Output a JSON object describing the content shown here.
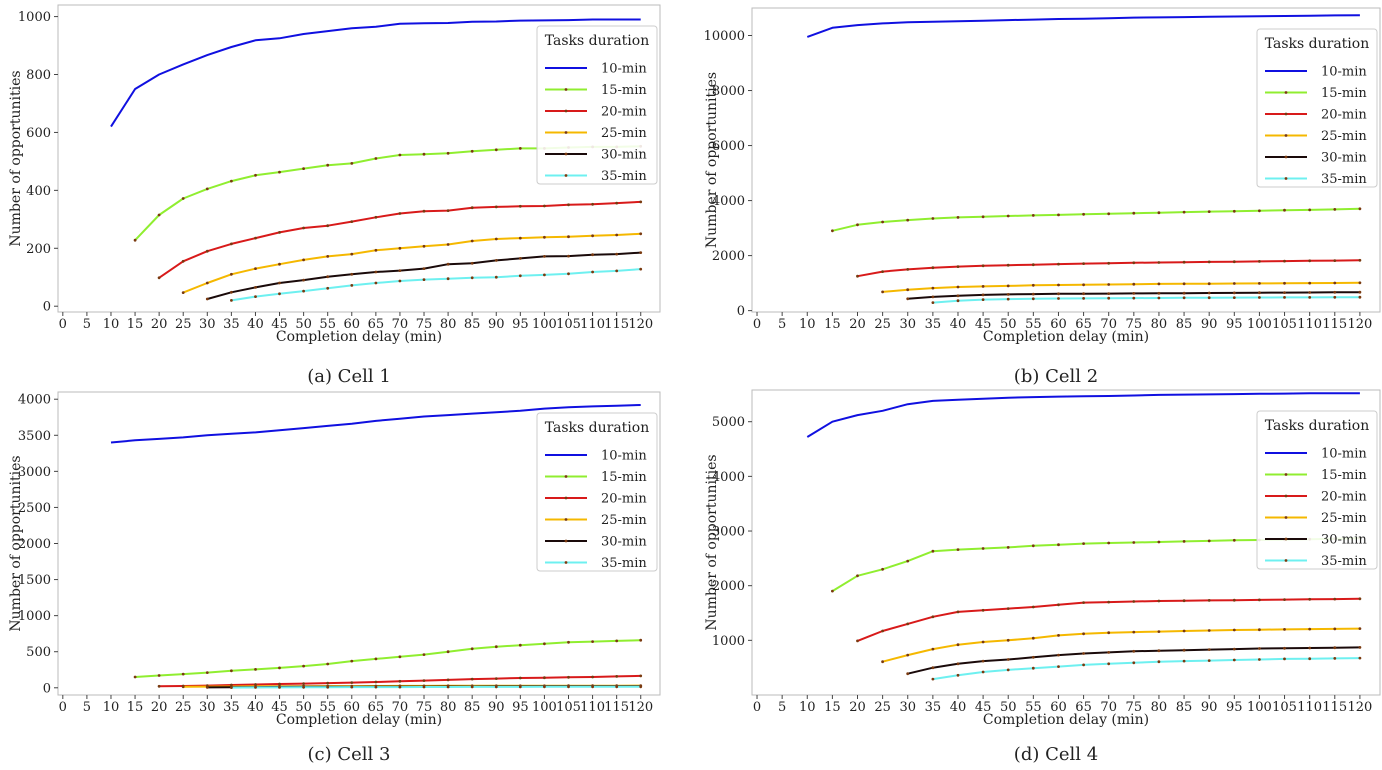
{
  "figure": {
    "legend_title": "Tasks duration",
    "series_colors": {
      "10-min": "#1010e0",
      "15-min": "#90ee30",
      "20-min": "#d81a1a",
      "25-min": "#f5b800",
      "30-min": "#1a0a0a",
      "35-min": "#6ef0f0"
    }
  },
  "chart_data": [
    {
      "type": "line",
      "caption": "(a) Cell 1",
      "xlabel": "Completion delay (min)",
      "ylabel": "Number of opportunities",
      "x_ticks": [
        0,
        5,
        10,
        15,
        20,
        25,
        30,
        35,
        40,
        45,
        50,
        55,
        60,
        65,
        70,
        75,
        80,
        85,
        90,
        95,
        100,
        105,
        110,
        115,
        120
      ],
      "y_ticks": [
        0,
        200,
        400,
        600,
        800,
        1000
      ],
      "ylim": [
        -20,
        1040
      ],
      "legend": true,
      "legend_position": "right",
      "series": [
        {
          "name": "10-min",
          "x_start": 10,
          "values": [
            620,
            750,
            800,
            835,
            867,
            895,
            918,
            925,
            940,
            950,
            960,
            965,
            975,
            977,
            978,
            982,
            983,
            986,
            987,
            988,
            990,
            990,
            990
          ]
        },
        {
          "name": "15-min",
          "x_start": 15,
          "values": [
            228,
            315,
            372,
            405,
            432,
            452,
            463,
            475,
            487,
            493,
            510,
            522,
            525,
            528,
            535,
            540,
            545,
            545,
            548,
            550,
            550,
            552
          ]
        },
        {
          "name": "20-min",
          "x_start": 20,
          "values": [
            98,
            155,
            190,
            215,
            235,
            255,
            270,
            278,
            292,
            307,
            320,
            328,
            330,
            340,
            343,
            345,
            346,
            350,
            352,
            356,
            360
          ]
        },
        {
          "name": "25-min",
          "x_start": 25,
          "values": [
            47,
            80,
            110,
            130,
            145,
            160,
            172,
            180,
            193,
            200,
            207,
            213,
            225,
            232,
            235,
            238,
            240,
            243,
            246,
            250
          ]
        },
        {
          "name": "30-min",
          "x_start": 30,
          "values": [
            25,
            48,
            65,
            80,
            90,
            102,
            110,
            118,
            123,
            130,
            145,
            148,
            158,
            165,
            172,
            173,
            178,
            180,
            185
          ]
        },
        {
          "name": "35-min",
          "x_start": 35,
          "values": [
            20,
            33,
            43,
            52,
            62,
            72,
            80,
            87,
            92,
            95,
            98,
            100,
            105,
            108,
            112,
            118,
            122,
            128
          ]
        }
      ]
    },
    {
      "type": "line",
      "caption": "(b) Cell 2",
      "xlabel": "Completion delay (min)",
      "ylabel": "Number of opportunities",
      "x_ticks": [
        0,
        5,
        10,
        15,
        20,
        25,
        30,
        35,
        40,
        45,
        50,
        55,
        60,
        65,
        70,
        75,
        80,
        85,
        90,
        95,
        100,
        105,
        110,
        115,
        120
      ],
      "y_ticks": [
        0,
        2000,
        4000,
        6000,
        8000,
        10000
      ],
      "ylim": [
        -50,
        11000
      ],
      "legend": true,
      "legend_position": "right",
      "series": [
        {
          "name": "10-min",
          "x_start": 10,
          "values": [
            9950,
            10280,
            10380,
            10440,
            10480,
            10500,
            10520,
            10540,
            10560,
            10580,
            10600,
            10610,
            10630,
            10650,
            10660,
            10670,
            10680,
            10690,
            10700,
            10710,
            10720,
            10730,
            10740
          ]
        },
        {
          "name": "15-min",
          "x_start": 15,
          "values": [
            2900,
            3120,
            3220,
            3290,
            3350,
            3390,
            3410,
            3440,
            3460,
            3480,
            3500,
            3520,
            3540,
            3560,
            3580,
            3600,
            3610,
            3630,
            3650,
            3660,
            3680,
            3700
          ]
        },
        {
          "name": "20-min",
          "x_start": 20,
          "values": [
            1250,
            1420,
            1500,
            1560,
            1600,
            1630,
            1650,
            1670,
            1690,
            1710,
            1720,
            1740,
            1750,
            1760,
            1770,
            1780,
            1790,
            1800,
            1810,
            1820,
            1830
          ]
        },
        {
          "name": "25-min",
          "x_start": 25,
          "values": [
            680,
            760,
            820,
            860,
            880,
            900,
            920,
            930,
            940,
            950,
            960,
            970,
            975,
            980,
            985,
            990,
            995,
            1000,
            1005,
            1010
          ]
        },
        {
          "name": "30-min",
          "x_start": 30,
          "values": [
            430,
            500,
            540,
            570,
            590,
            600,
            610,
            615,
            620,
            625,
            630,
            635,
            640,
            645,
            650,
            655,
            660,
            665,
            670
          ]
        },
        {
          "name": "35-min",
          "x_start": 35,
          "values": [
            290,
            360,
            400,
            420,
            430,
            440,
            445,
            450,
            455,
            460,
            465,
            470,
            475,
            478,
            480,
            482,
            485,
            488
          ]
        }
      ]
    },
    {
      "type": "line",
      "caption": "(c) Cell 3",
      "xlabel": "Completion delay (min)",
      "ylabel": "Number of opportunities",
      "x_ticks": [
        0,
        5,
        10,
        15,
        20,
        25,
        30,
        35,
        40,
        45,
        50,
        55,
        60,
        65,
        70,
        75,
        80,
        85,
        90,
        95,
        100,
        105,
        110,
        115,
        120
      ],
      "y_ticks": [
        0,
        500,
        1000,
        1500,
        2000,
        2500,
        3000,
        3500,
        4000
      ],
      "ylim": [
        -100,
        4100
      ],
      "legend": true,
      "legend_position": "right",
      "series": [
        {
          "name": "10-min",
          "x_start": 10,
          "values": [
            3400,
            3430,
            3450,
            3470,
            3500,
            3520,
            3540,
            3570,
            3600,
            3630,
            3660,
            3700,
            3730,
            3760,
            3780,
            3800,
            3820,
            3840,
            3870,
            3890,
            3900,
            3910,
            3920
          ]
        },
        {
          "name": "15-min",
          "x_start": 15,
          "values": [
            150,
            170,
            190,
            210,
            235,
            255,
            275,
            300,
            330,
            370,
            400,
            430,
            460,
            500,
            540,
            570,
            590,
            610,
            630,
            640,
            650,
            660
          ]
        },
        {
          "name": "20-min",
          "x_start": 20,
          "values": [
            20,
            25,
            30,
            38,
            45,
            52,
            58,
            65,
            72,
            80,
            90,
            100,
            110,
            120,
            128,
            135,
            140,
            145,
            150,
            158,
            165
          ]
        },
        {
          "name": "25-min",
          "x_start": 25,
          "values": [
            15,
            17,
            18,
            20,
            21,
            22,
            23,
            24,
            25,
            26,
            26,
            27,
            27,
            28,
            28,
            28,
            29,
            29,
            29,
            30
          ]
        },
        {
          "name": "30-min",
          "x_start": 30,
          "values": [
            5,
            8,
            10,
            12,
            13,
            14,
            15,
            16,
            17,
            17,
            18,
            18,
            19,
            19,
            20,
            20,
            20,
            21,
            21
          ]
        },
        {
          "name": "35-min",
          "x_start": 35,
          "values": [
            3,
            5,
            6,
            7,
            8,
            9,
            10,
            10,
            11,
            11,
            12,
            12,
            12,
            13,
            13,
            13,
            14,
            14
          ]
        }
      ]
    },
    {
      "type": "line",
      "caption": "(d) Cell 4",
      "xlabel": "Completion delay (min)",
      "ylabel": "Number of opportunities",
      "x_ticks": [
        0,
        5,
        10,
        15,
        20,
        25,
        30,
        35,
        40,
        45,
        50,
        55,
        60,
        65,
        70,
        75,
        80,
        85,
        90,
        95,
        100,
        105,
        110,
        115,
        120
      ],
      "y_ticks": [
        1000,
        2000,
        3000,
        4000,
        5000
      ],
      "ylim": [
        0,
        5580
      ],
      "legend": true,
      "legend_position": "right",
      "series": [
        {
          "name": "10-min",
          "x_start": 10,
          "values": [
            4720,
            5000,
            5120,
            5200,
            5320,
            5380,
            5400,
            5420,
            5440,
            5450,
            5460,
            5465,
            5470,
            5480,
            5490,
            5495,
            5500,
            5505,
            5510,
            5515,
            5520,
            5520,
            5520
          ]
        },
        {
          "name": "15-min",
          "x_start": 15,
          "values": [
            1900,
            2180,
            2300,
            2450,
            2630,
            2660,
            2680,
            2700,
            2730,
            2750,
            2770,
            2780,
            2790,
            2800,
            2810,
            2820,
            2830,
            2835,
            2840,
            2850,
            2860,
            2870
          ]
        },
        {
          "name": "20-min",
          "x_start": 20,
          "values": [
            990,
            1170,
            1300,
            1430,
            1520,
            1550,
            1580,
            1610,
            1650,
            1690,
            1700,
            1710,
            1720,
            1725,
            1730,
            1735,
            1740,
            1745,
            1750,
            1755,
            1760
          ]
        },
        {
          "name": "25-min",
          "x_start": 25,
          "values": [
            610,
            730,
            840,
            920,
            970,
            1000,
            1040,
            1090,
            1120,
            1140,
            1150,
            1160,
            1170,
            1180,
            1190,
            1195,
            1200,
            1205,
            1210,
            1215
          ]
        },
        {
          "name": "30-min",
          "x_start": 30,
          "values": [
            390,
            500,
            570,
            620,
            650,
            690,
            730,
            760,
            780,
            800,
            810,
            820,
            830,
            840,
            850,
            855,
            860,
            865,
            870
          ]
        },
        {
          "name": "35-min",
          "x_start": 35,
          "values": [
            290,
            360,
            420,
            460,
            490,
            520,
            550,
            570,
            590,
            610,
            620,
            630,
            640,
            650,
            660,
            665,
            670,
            675
          ]
        }
      ]
    }
  ]
}
